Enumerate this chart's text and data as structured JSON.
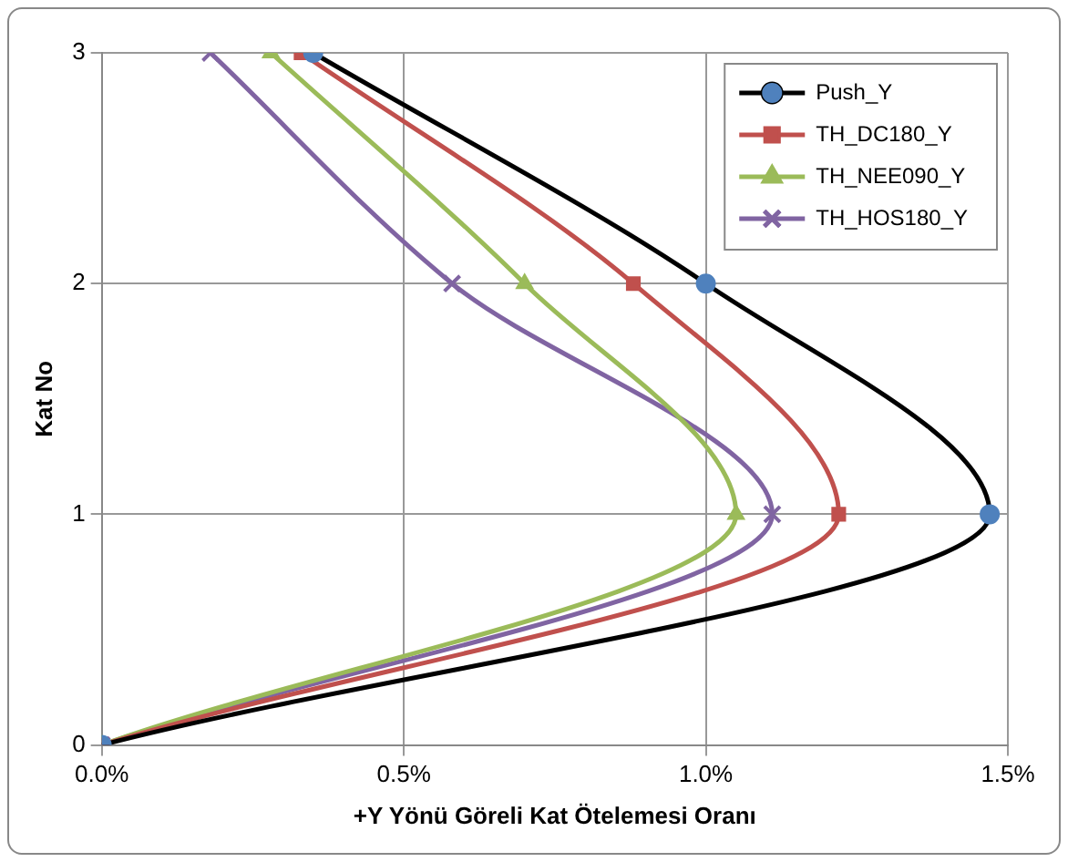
{
  "chart_data": {
    "type": "line",
    "xlabel": "+Y Yönü Göreli Kat Ötelemesi Oranı",
    "ylabel": "Kat No",
    "xlim": [
      0,
      0.015
    ],
    "xticks": [
      {
        "value": 0,
        "label": "0.0%"
      },
      {
        "value": 0.005,
        "label": "0.5%"
      },
      {
        "value": 0.01,
        "label": "1.0%"
      },
      {
        "value": 0.015,
        "label": "1.5%"
      }
    ],
    "ylim": [
      0,
      3
    ],
    "yticks": [
      0,
      1,
      2,
      3
    ],
    "grid": true,
    "legend": "top right",
    "line_style": "solid",
    "series": [
      {
        "name": "Push_Y",
        "color": "#000000",
        "colors": [
          "#4f81bd",
          "#4f81bd",
          "#4f81bd",
          "#4f81bd"
        ],
        "marker": "circle",
        "x": [
          0,
          0.0147,
          0.01,
          0.0035
        ],
        "values": [
          0,
          1,
          2,
          3
        ]
      },
      {
        "name": "TH_DC180_Y",
        "color": "#c0504d",
        "marker": "square",
        "x": [
          0,
          0.0122,
          0.0088,
          0.0033
        ],
        "values": [
          0,
          1,
          2,
          3
        ]
      },
      {
        "name": "TH_NEE090_Y",
        "color": "#9bbb59",
        "marker": "triangle",
        "x": [
          0,
          0.0105,
          0.007,
          0.0028
        ],
        "values": [
          0,
          1,
          2,
          3
        ]
      },
      {
        "name": "TH_HOS180_Y",
        "color": "#8064a2",
        "marker": "cross",
        "x": [
          0,
          0.0111,
          0.0058,
          0.0018
        ],
        "values": [
          0,
          1,
          2,
          3
        ]
      }
    ]
  }
}
